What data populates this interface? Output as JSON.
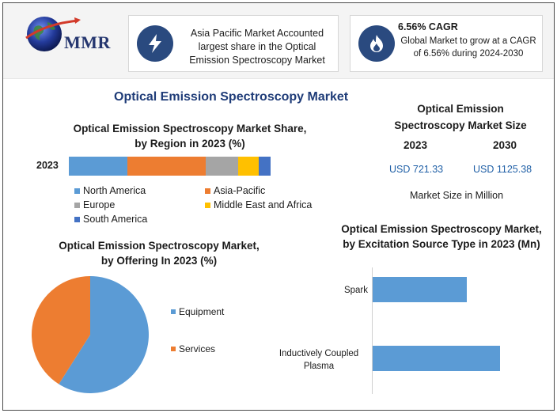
{
  "brand": {
    "name": "MMR"
  },
  "highlights": {
    "region_note": "Asia Pacific Market Accounted largest share in the Optical Emission Spectroscopy Market",
    "cagr_title": "6.56% CAGR",
    "cagr_text": "Global Market to grow at a CAGR of 6.56% during 2024-2030",
    "bolt_icon": "lightning-bolt-icon",
    "flame_icon": "flame-icon"
  },
  "main_title": "Optical Emission Spectroscopy Market",
  "market_size": {
    "title": "Optical Emission Spectroscopy Market Size",
    "year_a": "2023",
    "year_b": "2030",
    "value_a": "USD 721.33",
    "value_b": "USD 1125.38",
    "note": "Market Size in Million"
  },
  "colors": {
    "blue": "#5b9bd5",
    "orange": "#ed7d31",
    "gray": "#a5a5a5",
    "yellow": "#ffc000",
    "dark_blue": "#4472c4"
  },
  "chart_data": [
    {
      "type": "bar",
      "orientation": "horizontal-stacked",
      "title": "Optical Emission Spectroscopy Market Share, by Region in 2023 (%)",
      "categories": [
        "2023"
      ],
      "series": [
        {
          "name": "North America",
          "values": [
            29
          ],
          "color": "#5b9bd5"
        },
        {
          "name": "Asia-Pacific",
          "values": [
            39
          ],
          "color": "#ed7d31"
        },
        {
          "name": "Europe",
          "values": [
            16
          ],
          "color": "#a5a5a5"
        },
        {
          "name": "Middle East and Africa",
          "values": [
            10
          ],
          "color": "#ffc000"
        },
        {
          "name": "South America",
          "values": [
            6
          ],
          "color": "#4472c4"
        }
      ],
      "xlim": [
        0,
        100
      ],
      "legend": "bottom"
    },
    {
      "type": "pie",
      "title": "Optical Emission Spectroscopy Market, by Offering In 2023 (%)",
      "labels": [
        "Equipment",
        "Services"
      ],
      "values": [
        59,
        41
      ],
      "colors": [
        "#5b9bd5",
        "#ed7d31"
      ],
      "legend": "right"
    },
    {
      "type": "bar",
      "orientation": "horizontal",
      "title": "Optical Emission Spectroscopy Market, by Excitation Source Type in 2023 (Mn)",
      "categories": [
        "Spark",
        "Inductively Coupled Plasma"
      ],
      "values": [
        310,
        420
      ],
      "xlim": [
        0,
        600
      ],
      "color": "#5b9bd5"
    }
  ]
}
